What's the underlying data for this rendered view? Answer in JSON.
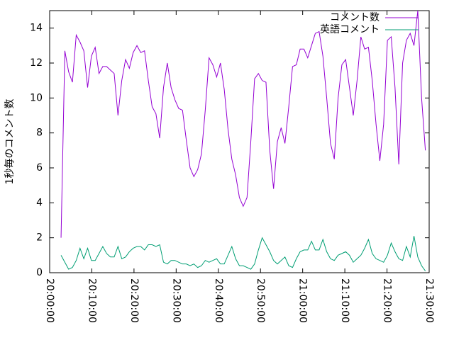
{
  "chart_data": {
    "type": "line",
    "ylabel": "1秒毎のコメント数",
    "x": [
      "20:02:42",
      "20:03:36",
      "20:04:30",
      "20:05:24",
      "20:06:18",
      "20:07:12",
      "20:08:06",
      "20:09:00",
      "20:09:54",
      "20:10:48",
      "20:11:42",
      "20:12:36",
      "20:13:30",
      "20:14:24",
      "20:15:18",
      "20:16:12",
      "20:17:06",
      "20:18:00",
      "20:18:54",
      "20:19:48",
      "20:20:42",
      "20:21:36",
      "20:22:30",
      "20:23:24",
      "20:24:18",
      "20:25:12",
      "20:26:06",
      "20:27:00",
      "20:27:54",
      "20:28:48",
      "20:29:42",
      "20:30:36",
      "20:31:30",
      "20:32:24",
      "20:33:18",
      "20:34:12",
      "20:35:06",
      "20:36:00",
      "20:36:54",
      "20:37:48",
      "20:38:42",
      "20:39:36",
      "20:40:30",
      "20:41:24",
      "20:42:18",
      "20:43:12",
      "20:44:06",
      "20:45:00",
      "20:45:54",
      "20:46:48",
      "20:47:42",
      "20:48:36",
      "20:49:30",
      "20:50:24",
      "20:51:18",
      "20:52:12",
      "20:53:06",
      "20:54:00",
      "20:54:54",
      "20:55:48",
      "20:56:42",
      "20:57:36",
      "20:58:30",
      "20:59:24",
      "21:00:18",
      "21:01:12",
      "21:02:06",
      "21:03:00",
      "21:03:54",
      "21:04:48",
      "21:05:42",
      "21:06:36",
      "21:07:30",
      "21:08:24",
      "21:09:18",
      "21:10:12",
      "21:11:06",
      "21:12:00",
      "21:12:54",
      "21:13:48",
      "21:14:42",
      "21:15:36",
      "21:16:30",
      "21:17:24",
      "21:18:18",
      "21:19:12",
      "21:20:06",
      "21:21:00",
      "21:21:54",
      "21:22:48",
      "21:23:42",
      "21:24:36",
      "21:25:30",
      "21:26:24",
      "21:27:18",
      "21:28:12",
      "21:29:06"
    ],
    "series": [
      {
        "name": "コメント数",
        "color": "#9400d3",
        "values": [
          2.0,
          12.7,
          11.5,
          10.9,
          13.6,
          13.2,
          12.7,
          10.6,
          12.4,
          12.9,
          11.4,
          11.8,
          11.8,
          11.6,
          11.4,
          9.0,
          11.0,
          12.2,
          11.7,
          12.6,
          13.0,
          12.6,
          12.7,
          11.0,
          9.5,
          9.1,
          7.7,
          10.6,
          12.0,
          10.6,
          9.9,
          9.4,
          9.3,
          7.6,
          6.0,
          5.5,
          5.9,
          6.8,
          9.3,
          12.3,
          11.9,
          11.2,
          12.0,
          10.5,
          8.2,
          6.5,
          5.6,
          4.3,
          3.8,
          4.3,
          7.5,
          11.1,
          11.4,
          11.0,
          10.9,
          7.0,
          4.8,
          7.5,
          8.3,
          7.4,
          9.5,
          11.8,
          11.9,
          12.8,
          12.8,
          12.3,
          13.0,
          13.7,
          13.8,
          12.4,
          10.0,
          7.4,
          6.5,
          10.0,
          11.9,
          12.2,
          10.6,
          9.0,
          11.0,
          13.5,
          12.8,
          12.9,
          11.0,
          8.5,
          6.4,
          8.5,
          13.3,
          13.5,
          10.6,
          6.2,
          12.0,
          13.3,
          13.7,
          13.0,
          15.0,
          10.0,
          7.0
        ]
      },
      {
        "name": "英語コメント",
        "color": "#009e73",
        "values": [
          1.0,
          0.6,
          0.2,
          0.3,
          0.7,
          1.4,
          0.8,
          1.4,
          0.7,
          0.7,
          1.1,
          1.5,
          1.1,
          0.9,
          0.9,
          1.5,
          0.8,
          0.9,
          1.2,
          1.4,
          1.5,
          1.5,
          1.3,
          1.6,
          1.6,
          1.5,
          1.6,
          0.6,
          0.5,
          0.7,
          0.7,
          0.6,
          0.5,
          0.5,
          0.4,
          0.5,
          0.3,
          0.4,
          0.7,
          0.6,
          0.7,
          0.8,
          0.5,
          0.5,
          1.0,
          1.5,
          0.8,
          0.4,
          0.4,
          0.3,
          0.2,
          0.5,
          1.3,
          2.0,
          1.6,
          1.2,
          0.7,
          0.5,
          0.7,
          0.9,
          0.4,
          0.3,
          0.8,
          1.2,
          1.3,
          1.3,
          1.8,
          1.3,
          1.3,
          1.9,
          1.2,
          0.8,
          0.7,
          1.0,
          1.1,
          1.2,
          1.0,
          0.6,
          0.8,
          1.0,
          1.4,
          1.9,
          1.1,
          0.8,
          0.7,
          0.6,
          1.0,
          1.7,
          1.2,
          0.8,
          0.7,
          1.5,
          0.9,
          2.1,
          0.9,
          0.4,
          0.1
        ]
      }
    ],
    "xlim": [
      "20:00:00",
      "21:30:00"
    ],
    "xticks": [
      "20:00:00",
      "20:10:00",
      "20:20:00",
      "20:30:00",
      "20:40:00",
      "20:50:00",
      "21:00:00",
      "21:10:00",
      "21:20:00",
      "21:30:00"
    ],
    "ylim": [
      0,
      15
    ],
    "yticks": [
      0,
      2,
      4,
      6,
      8,
      10,
      12,
      14
    ],
    "legend": "top-right"
  }
}
